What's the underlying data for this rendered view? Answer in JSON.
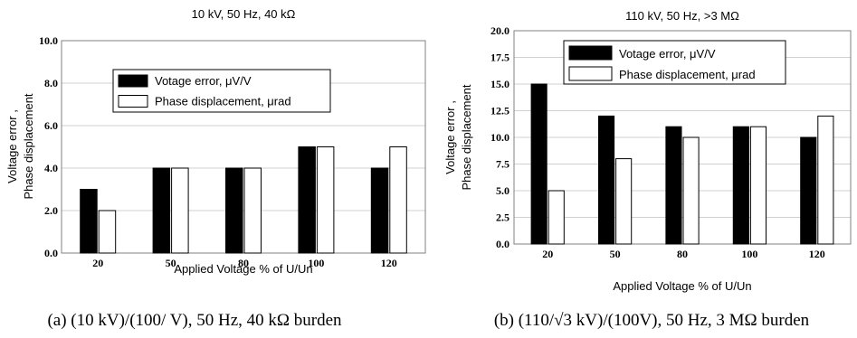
{
  "chart_data": [
    {
      "type": "bar",
      "title": "10 kV, 50 Hz, 40 kΩ",
      "xlabel": "Applied Voltage % of U/Un",
      "ylabel_lines": [
        "Voltage error ,",
        "Phase displacement"
      ],
      "categories": [
        "20",
        "50",
        "80",
        "100",
        "120"
      ],
      "ylim": [
        0,
        10
      ],
      "yticks": [
        "0.0",
        "2.0",
        "4.0",
        "6.0",
        "8.0",
        "10.0"
      ],
      "grid": true,
      "legend_position": "upper-center",
      "series": [
        {
          "name": "Votage error, μV/V",
          "color": "#000000",
          "values": [
            3,
            4,
            4,
            5,
            4
          ]
        },
        {
          "name": "Phase displacement, μrad",
          "color": "#ffffff",
          "values": [
            2,
            4,
            4,
            5,
            5
          ]
        }
      ]
    },
    {
      "type": "bar",
      "title": "110 kV, 50 Hz, >3 MΩ",
      "xlabel": "Applied Voltage % of U/Un",
      "ylabel_lines": [
        "Voltage error ,",
        "Phase displacement"
      ],
      "categories": [
        "20",
        "50",
        "80",
        "100",
        "120"
      ],
      "ylim": [
        0,
        20
      ],
      "yticks": [
        "0.0",
        "2.5",
        "5.0",
        "7.5",
        "10.0",
        "12.5",
        "15.0",
        "17.5",
        "20.0"
      ],
      "grid": true,
      "legend_position": "top",
      "series": [
        {
          "name": "Votage error, μV/V",
          "color": "#000000",
          "values": [
            15,
            12,
            11,
            11,
            10
          ]
        },
        {
          "name": "Phase displacement, μrad",
          "color": "#ffffff",
          "values": [
            5,
            8,
            10,
            11,
            12
          ]
        }
      ]
    }
  ],
  "captions": [
    "(a) (10 kV)/(100/ V), 50 Hz, 40 kΩ burden",
    "(b) (110/√3 kV)/(100V), 50 Hz, 3 MΩ burden"
  ]
}
